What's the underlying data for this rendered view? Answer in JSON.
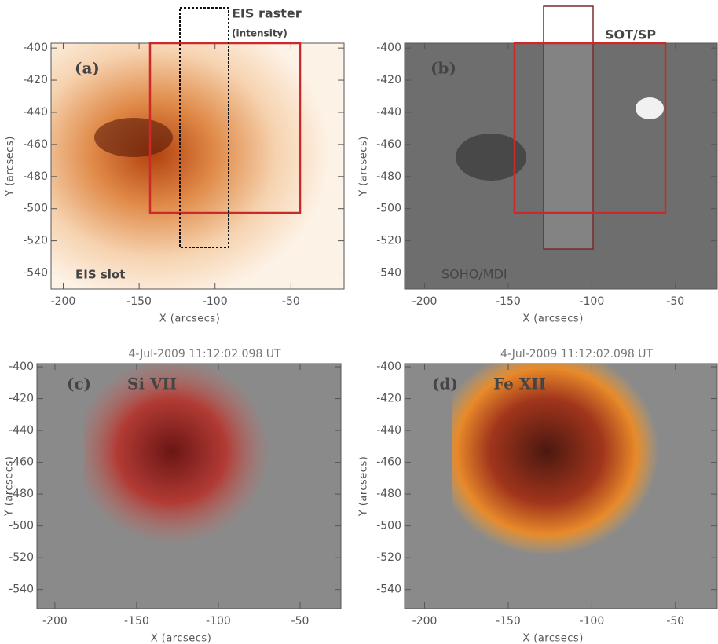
{
  "chart_data": [
    {
      "type": "image",
      "panel_label": "(a)",
      "annotations": [
        "EIS raster",
        "(intensity)",
        "EIS slot"
      ],
      "xlabel": "X (arcsecs)",
      "ylabel": "Y (arcsecs)",
      "xlim": [
        -208,
        -15
      ],
      "ylim": [
        -550,
        -397
      ],
      "xticks": [
        -200,
        -150,
        -100,
        -50
      ],
      "yticks": [
        -400,
        -420,
        -440,
        -460,
        -480,
        -500,
        -520,
        -540
      ]
    },
    {
      "type": "image",
      "panel_label": "(b)",
      "annotations": [
        "SOT/SP",
        "SOHO/MDI"
      ],
      "xlabel": "X (arcsecs)",
      "ylabel": "Y (arcsecs)",
      "xlim": [
        -212,
        -25
      ],
      "ylim": [
        -550,
        -397
      ],
      "xticks": [
        -200,
        -150,
        -100,
        -50
      ],
      "yticks": [
        -400,
        -420,
        -440,
        -460,
        -480,
        -500,
        -520,
        -540
      ]
    },
    {
      "type": "image",
      "title": "4-Jul-2009 11:12:02.098 UT",
      "panel_label": "(c)",
      "annotations": [
        "Si VII"
      ],
      "xlabel": "X (arcsecs)",
      "ylabel": "Y (arcsecs)",
      "xlim": [
        -211,
        -25
      ],
      "ylim": [
        -552,
        -398
      ],
      "xticks": [
        -200,
        -150,
        -100,
        -50
      ],
      "yticks": [
        -400,
        -420,
        -440,
        -460,
        -480,
        -500,
        -520,
        -540
      ]
    },
    {
      "type": "image",
      "title": "4-Jul-2009 11:12:02.098 UT",
      "panel_label": "(d)",
      "annotations": [
        "Fe XII"
      ],
      "xlabel": "X (arcsecs)",
      "ylabel": "Y (arcsecs)",
      "xlim": [
        -212,
        -25
      ],
      "ylim": [
        -552,
        -398
      ],
      "xticks": [
        -200,
        -150,
        -100,
        -50
      ],
      "yticks": [
        -400,
        -420,
        -440,
        -460,
        -480,
        -500,
        -520,
        -540
      ]
    }
  ]
}
